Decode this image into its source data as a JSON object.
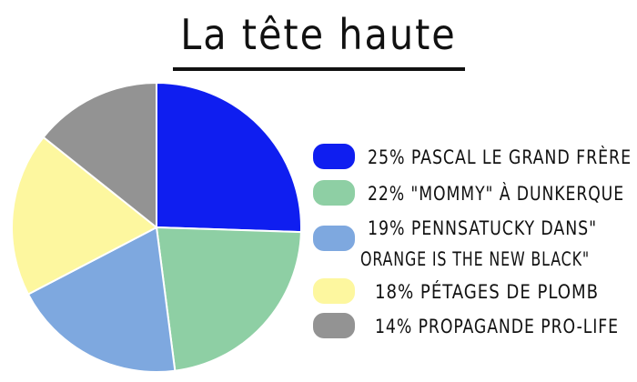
{
  "title": "La tête haute",
  "chart_data": {
    "type": "pie",
    "title": "La tête haute",
    "slices": [
      {
        "label_lines": [
          "25% Pascal le grand frère"
        ],
        "value": 25,
        "color": "#0f1ef0"
      },
      {
        "label_lines": [
          "22% \"Mommy\" à Dunkerque"
        ],
        "value": 22,
        "color": "#8ecfa4"
      },
      {
        "label_lines": [
          "19% Pennsatucky dans\"",
          "Orange is the new black\""
        ],
        "value": 19,
        "color": "#7ea8df"
      },
      {
        "label_lines": [
          "18% pétages de plomb"
        ],
        "value": 18,
        "color": "#fdf79f"
      },
      {
        "label_lines": [
          "14% propagande pro-life"
        ],
        "value": 14,
        "color": "#939393"
      }
    ],
    "legend": "right"
  }
}
